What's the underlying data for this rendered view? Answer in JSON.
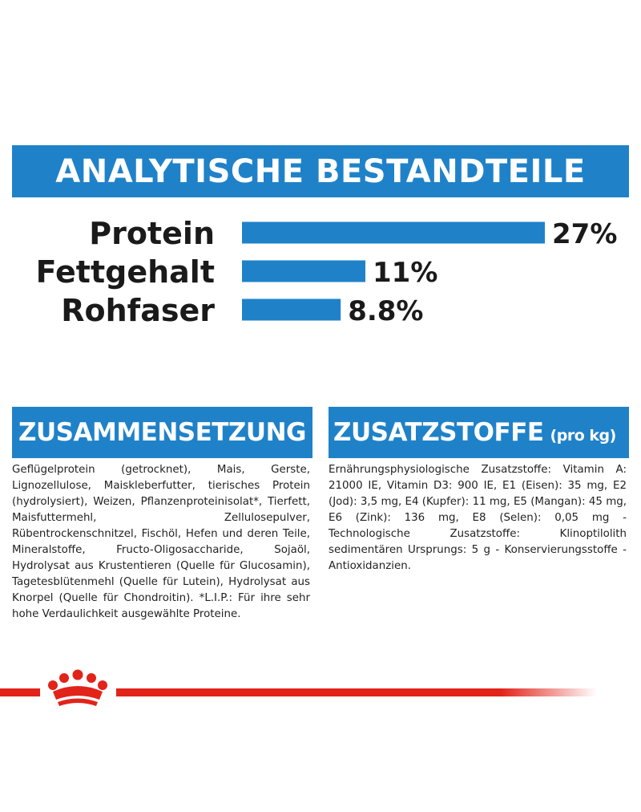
{
  "header": {
    "title": "ANALYTISCHE BESTANDTEILE"
  },
  "chart_data": {
    "type": "bar",
    "orientation": "horizontal",
    "title": "ANALYTISCHE BESTANDTEILE",
    "categories": [
      "Protein",
      "Fettgehalt",
      "Rohfaser"
    ],
    "values": [
      27,
      11,
      8.8
    ],
    "value_labels": [
      "27%",
      "11%",
      "8.8%"
    ],
    "unit": "%",
    "xlabel": "",
    "ylabel": "",
    "xlim": [
      0,
      27
    ],
    "grid": false,
    "legend": "none",
    "bar_color": "#1f82c9"
  },
  "composition": {
    "title": "ZUSAMMENSETZUNG",
    "text": "Geflügelprotein (getrocknet), Mais, Gerste, Lignozellulose, Maiskleberfutter, tierisches Protein (hydrolysiert), Weizen, Pflanzenproteinisolat*, Tierfett, Maisfuttermehl, Zellulosepulver, Rübentrockenschnitzel, Fischöl, Hefen und deren Teile, Mineralstoffe, Fructo-Oligosaccharide, Sojaöl, Hydrolysat aus Krustentieren (Quelle für Glucosamin), Tagetesblütenmehl (Quelle für Lutein), Hydrolysat aus Knorpel (Quelle für Chondroitin). *L.I.P.: Für ihre sehr hohe Verdaulichkeit ausgewählte Proteine."
  },
  "additives": {
    "title": "ZUSATZSTOFFE",
    "unit": "(pro kg)",
    "text": "Ernährungsphysiologische Zusatzstoffe: Vitamin A: 21000 IE, Vitamin D3: 900 IE, E1 (Eisen): 35 mg, E2 (Jod): 3,5 mg, E4 (Kupfer): 11 mg, E5 (Mangan): 45 mg, E6 (Zink): 136 mg, E8 (Selen): 0,05 mg - Technologische Zusatzstoffe: Klinoptilolith sedimentären Ursprungs: 5 g - Konservierungsstoffe - Antioxidanzien."
  },
  "colors": {
    "brand_blue": "#1f82c9",
    "brand_red": "#e2231a"
  },
  "logo": {
    "icon": "crown-icon"
  }
}
